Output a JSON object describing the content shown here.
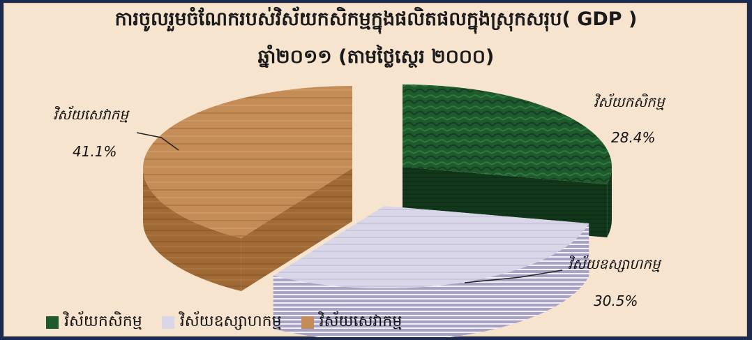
{
  "chart_data": {
    "type": "pie",
    "title": "ការចូលរួមចំណែករបស់វិស័យកសិកម្មក្នុងផលិតផលក្នុងស្រុកសរុប( GDP )",
    "subtitle": "ឆ្នាំ២០១១ (តាមថ្លៃស្ថេរ ២០០០)",
    "legend_position": "bottom-left",
    "slices": [
      {
        "label": "វិស័យកសិកម្ម",
        "value": 28.4,
        "value_label": "28.4%",
        "color": "#1f5a2c"
      },
      {
        "label": "វិស័យឧស្សាហកម្ម",
        "value": 30.5,
        "value_label": "30.5%",
        "color": "#cfcbe0"
      },
      {
        "label": "វិស័យសេវាកម្ម",
        "value": 41.1,
        "value_label": "41.1%",
        "color": "#c48d58"
      }
    ]
  }
}
